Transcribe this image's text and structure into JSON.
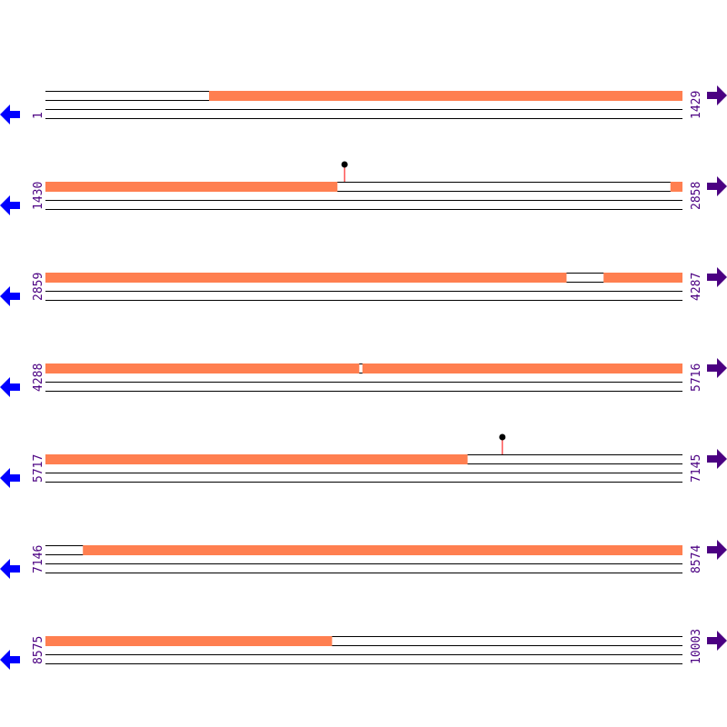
{
  "colors": {
    "feature": "#ff7f50",
    "label": "#4b0082",
    "left_arrow": "#0000ff",
    "right_arrow": "#4b0082",
    "marker_stem": "#ff0000",
    "marker_dot": "#000000",
    "line": "#000000"
  },
  "bases_per_row": 1429,
  "rows": [
    {
      "start": "1",
      "end": "1429"
    },
    {
      "start": "1430",
      "end": "2858"
    },
    {
      "start": "2859",
      "end": "4287"
    },
    {
      "start": "4288",
      "end": "5716"
    },
    {
      "start": "5717",
      "end": "7145"
    },
    {
      "start": "7146",
      "end": "8574"
    },
    {
      "start": "8575",
      "end": "10003"
    }
  ],
  "features": [
    [
      368,
      2084
    ],
    [
      2832,
      4027
    ],
    [
      4111,
      4991
    ],
    [
      4999,
      6663
    ],
    [
      7230,
      9217
    ]
  ],
  "markers": [
    2101,
    6742
  ],
  "icons": {
    "left": "arrow-left-icon",
    "right": "arrow-right-icon"
  }
}
